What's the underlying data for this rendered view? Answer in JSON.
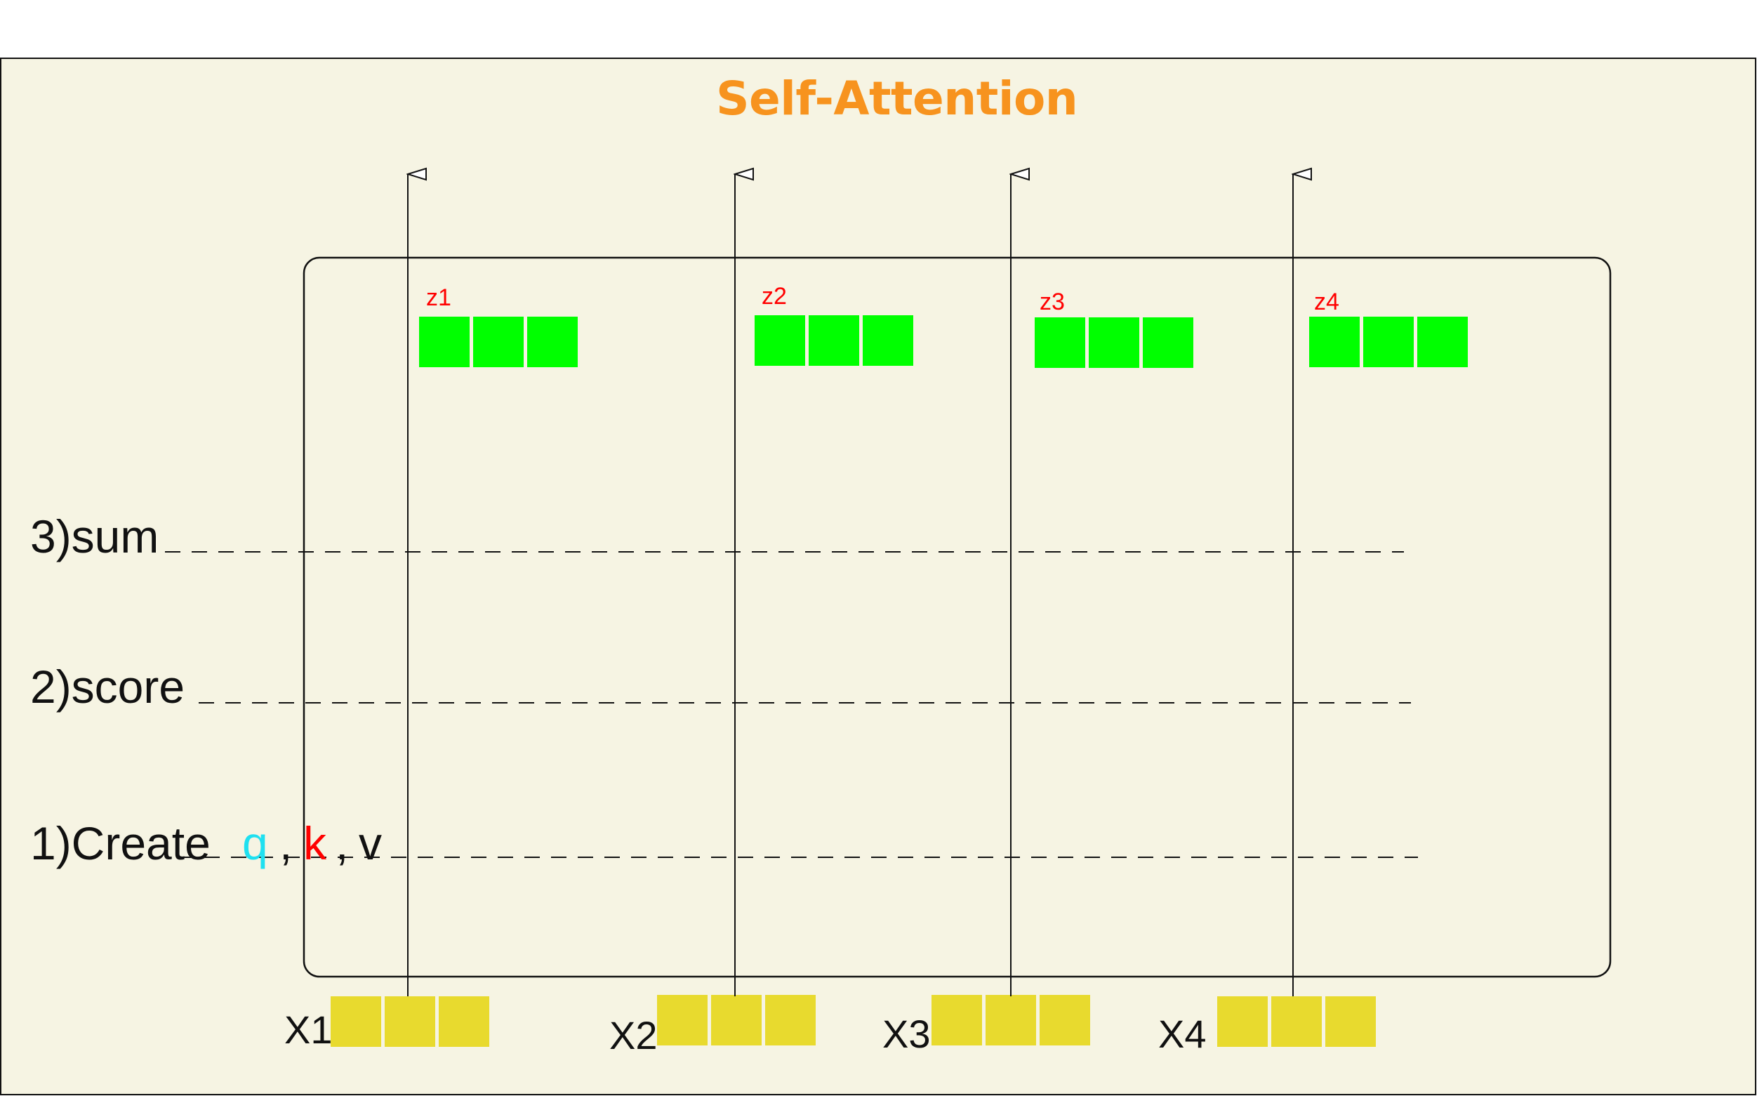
{
  "title": "Self-Attention",
  "steps": {
    "sum": "3)sum",
    "score": "2)score",
    "create": "1)Create",
    "q": "q",
    "comma1": ",",
    "k": "k",
    "comma2": ",",
    "v": "v"
  },
  "outputs": [
    {
      "label": "z1"
    },
    {
      "label": "z2"
    },
    {
      "label": "z3"
    },
    {
      "label": "z4"
    }
  ],
  "inputs": [
    {
      "label": "X1"
    },
    {
      "label": "X2"
    },
    {
      "label": "X3"
    },
    {
      "label": "X4"
    }
  ],
  "colors": {
    "background": "#f6f4e3",
    "title": "#f7931e",
    "output_cell": "#00ff00",
    "input_cell": "#e8da2e",
    "z_label": "#ff0000",
    "q": "#1fe0f0",
    "k": "#ff0000",
    "line": "#111111"
  }
}
